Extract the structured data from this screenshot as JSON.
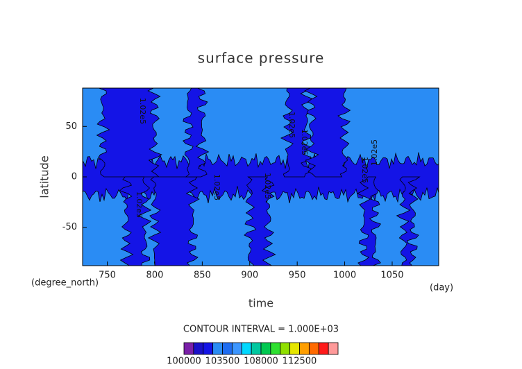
{
  "chart_data": {
    "type": "contour",
    "title": "surface pressure",
    "xlabel": "time",
    "ylabel": "latitude",
    "x_unit": "(day)",
    "y_unit": "(degree_north)",
    "xlim": [
      724,
      1099
    ],
    "ylim": [
      -88,
      88
    ],
    "xticks": [
      750,
      800,
      850,
      900,
      950,
      1000,
      1050
    ],
    "yticks": [
      -50,
      0,
      50
    ],
    "contour_interval": "CONTOUR INTERVAL = 1.000E+03",
    "contour_labels": [
      "1.02e5",
      "1.02e5",
      "1.02e5",
      "1.02e5",
      "1.02e5",
      "1.02e5",
      "1.02e5",
      "1.02e5"
    ],
    "fill_levels": [
      102000,
      103000
    ],
    "colorbar": {
      "bounds": [
        100000,
        101000,
        102000,
        103000,
        103500,
        104500,
        105500,
        106500,
        108000,
        109000,
        110000,
        111000,
        112500,
        113500,
        114500,
        115500,
        116500
      ],
      "colors": [
        "#7a1fa8",
        "#1a10c8",
        "#1414e6",
        "#2a8cf4",
        "#1e6cf0",
        "#3c96ff",
        "#00d8ff",
        "#00c8a0",
        "#00c850",
        "#2ee030",
        "#90e000",
        "#e6e600",
        "#ff9e00",
        "#ff6a00",
        "#ff1a1a",
        "#ff9a9a"
      ],
      "ticks": [
        100000,
        103500,
        108000,
        112500
      ]
    }
  }
}
